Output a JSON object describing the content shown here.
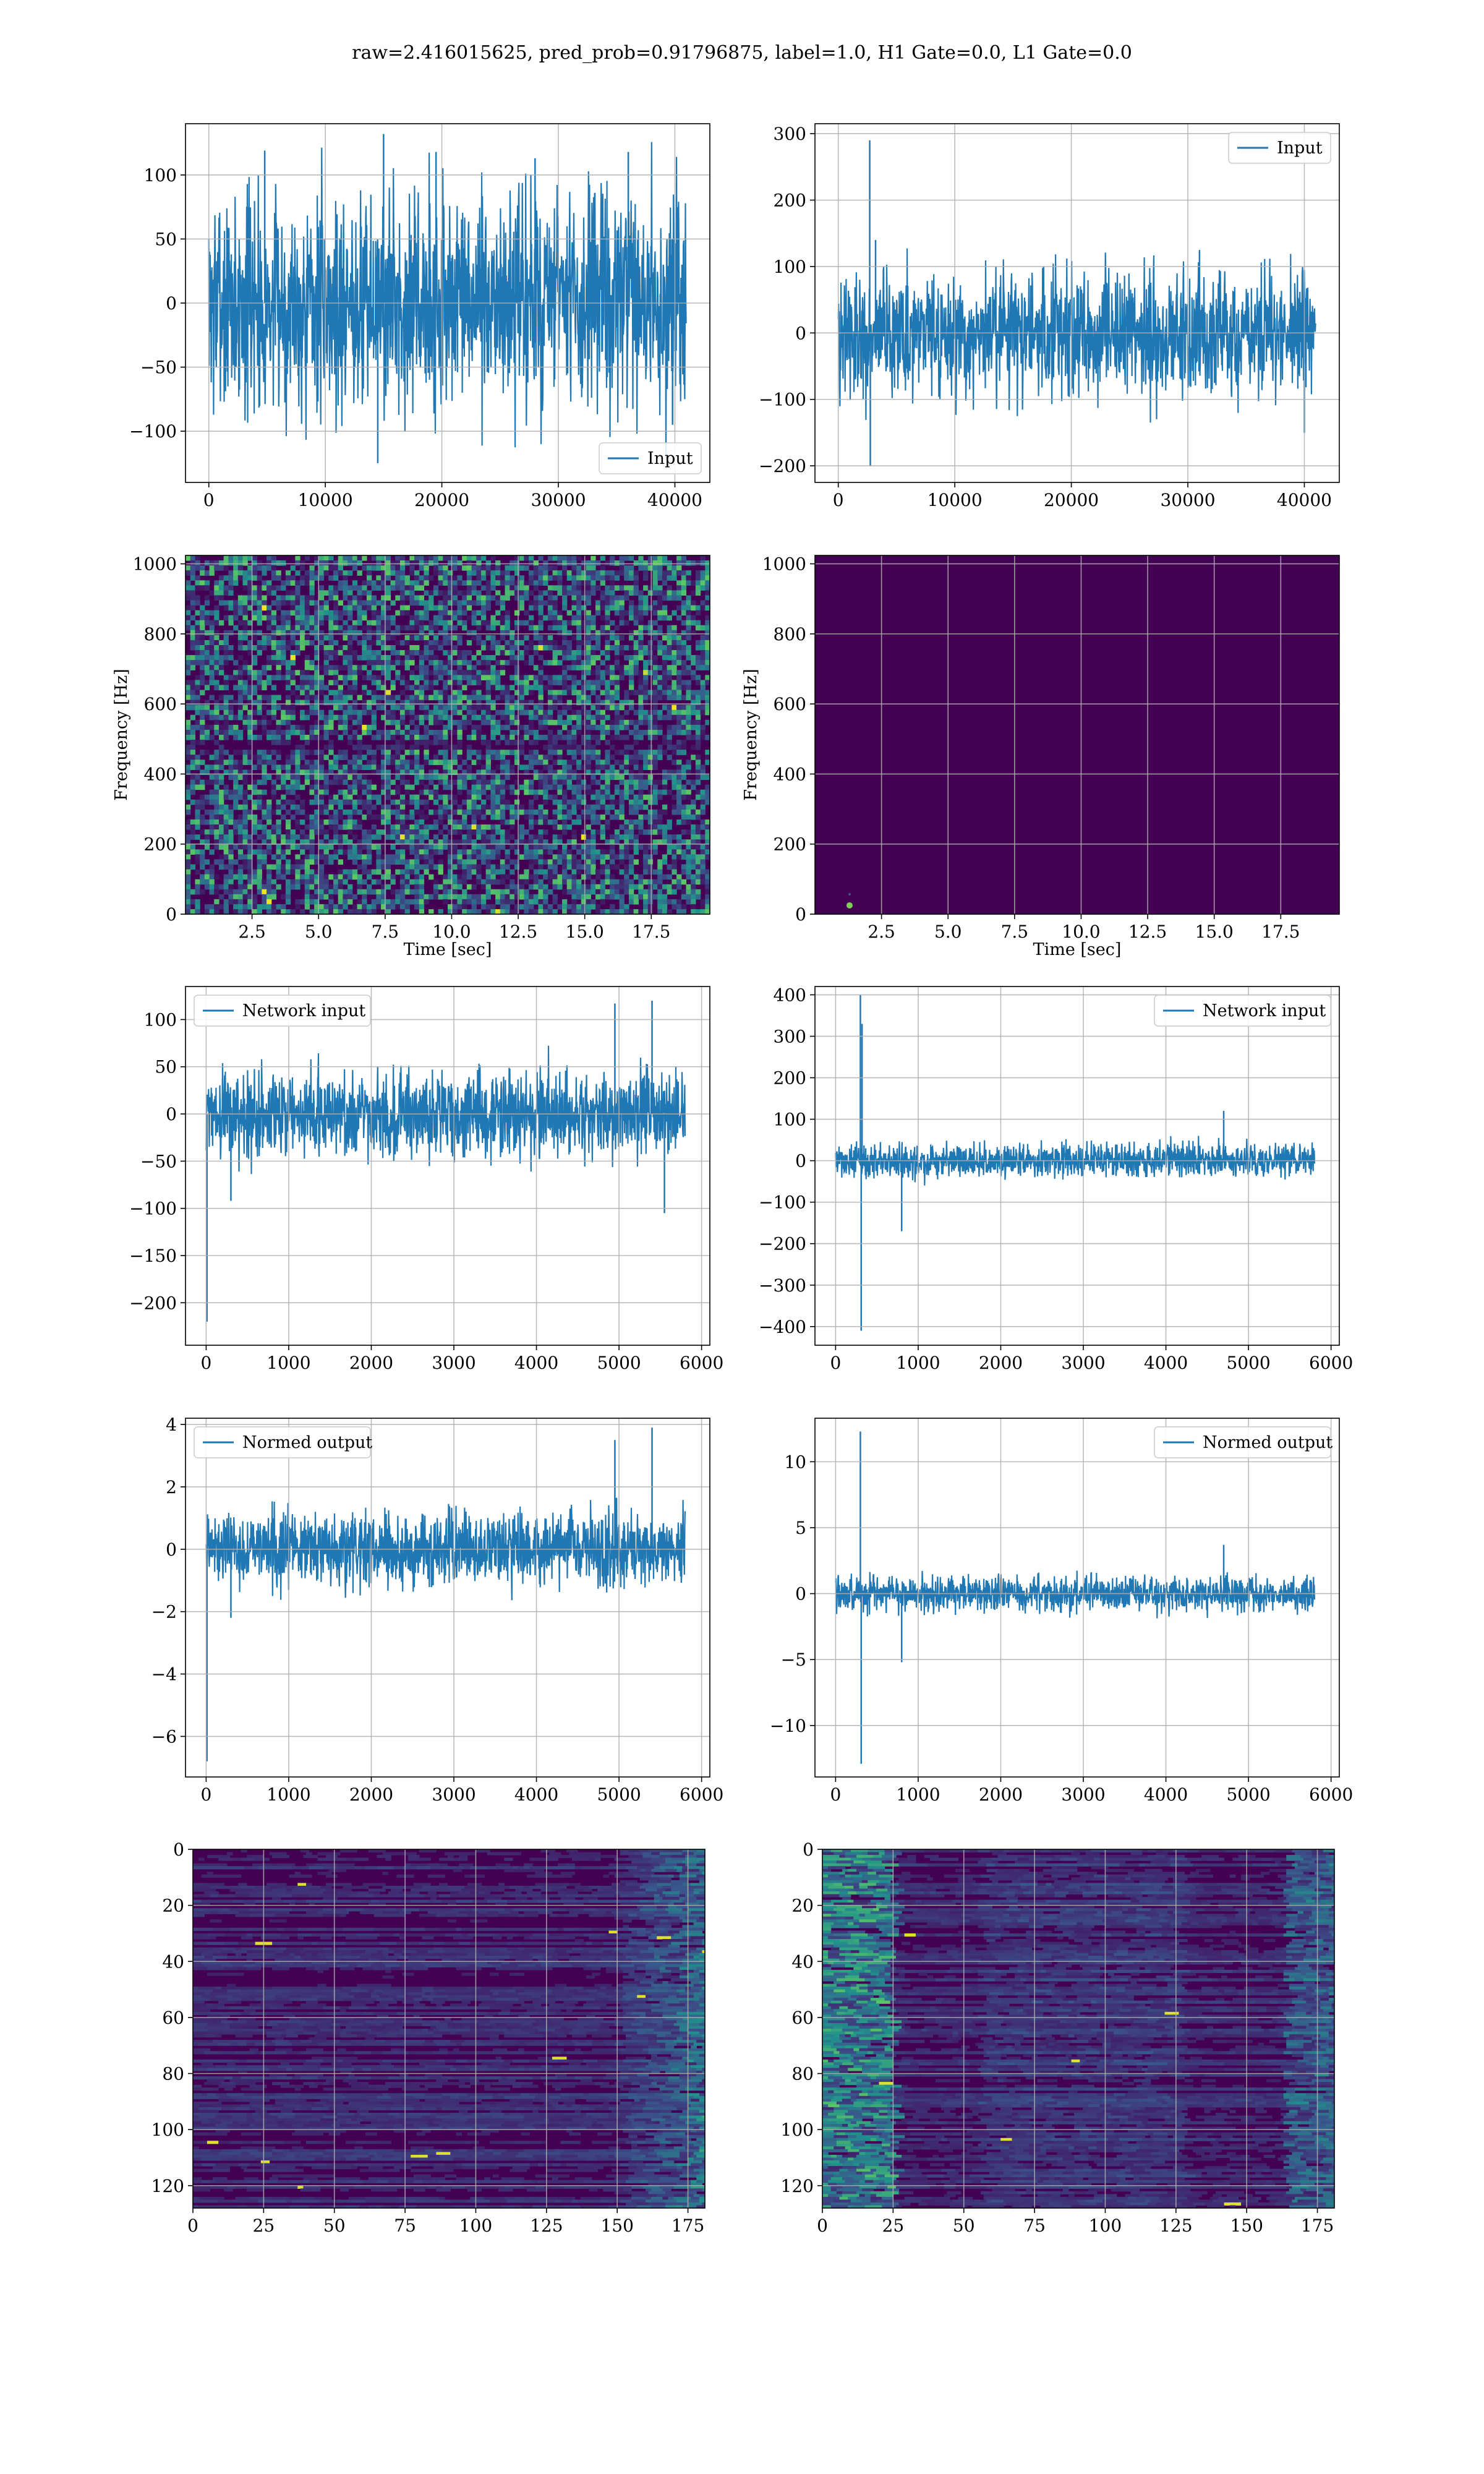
{
  "figure": {
    "title": "raw=2.416015625, pred_prob=0.91796875, label=1.0, H1 Gate=0.0, L1 Gate=0.0"
  },
  "colors": {
    "line": "#1f77b4",
    "grid": "#b0b0b0",
    "viridis_dark": "#440154",
    "viridis_mid": "#3b528b",
    "viridis_teal": "#21918c",
    "viridis_green": "#5ec962",
    "viridis_yellow": "#fde725"
  },
  "chart_data": [
    {
      "id": "h1-input",
      "type": "line",
      "series": [
        {
          "name": "Input",
          "x_range": [
            0,
            40960
          ],
          "amplitude": 60,
          "peaks": [
            [
              4800,
              119
            ],
            [
              15000,
              132
            ],
            [
              19500,
              118
            ],
            [
              28000,
              113
            ],
            [
              36000,
              118
            ],
            [
              39800,
              -95
            ],
            [
              14500,
              -125
            ]
          ]
        }
      ],
      "xlim": [
        -2000,
        43000
      ],
      "ylim": [
        -140,
        140
      ],
      "xticks": [
        0,
        10000,
        20000,
        30000,
        40000
      ],
      "yticks": [
        -100,
        -50,
        0,
        50,
        100
      ],
      "legend": "lower-right",
      "grid": true
    },
    {
      "id": "l1-input",
      "type": "line",
      "series": [
        {
          "name": "Input",
          "x_range": [
            0,
            40960
          ],
          "amplitude": 65,
          "peaks": [
            [
              2700,
              290
            ],
            [
              2750,
              -200
            ],
            [
              3200,
              140
            ],
            [
              31000,
              125
            ],
            [
              40000,
              -150
            ]
          ]
        }
      ],
      "xlim": [
        -2000,
        43000
      ],
      "ylim": [
        -225,
        315
      ],
      "xticks": [
        0,
        10000,
        20000,
        30000,
        40000
      ],
      "yticks": [
        -200,
        -100,
        0,
        100,
        200,
        300
      ],
      "legend": "upper-right",
      "grid": true
    },
    {
      "id": "h1-spectrogram",
      "type": "heatmap",
      "xlabel": "Time [sec]",
      "ylabel": "Frequency [Hz]",
      "xlim": [
        0,
        19.7
      ],
      "ylim": [
        0,
        1024
      ],
      "xticks": [
        2.5,
        5.0,
        7.5,
        10.0,
        12.5,
        15.0,
        17.5
      ],
      "xtick_labels": [
        "2.5",
        "5.0",
        "7.5",
        "10.0",
        "12.5",
        "15.0",
        "17.5"
      ],
      "yticks": [
        0,
        200,
        400,
        600,
        800,
        1000
      ],
      "texture": "noise",
      "grid": true
    },
    {
      "id": "l1-spectrogram",
      "type": "heatmap",
      "xlabel": "Time [sec]",
      "ylabel": "Frequency [Hz]",
      "xlim": [
        0,
        19.7
      ],
      "ylim": [
        0,
        1024
      ],
      "xticks": [
        2.5,
        5.0,
        7.5,
        10.0,
        12.5,
        15.0,
        17.5
      ],
      "xtick_labels": [
        "2.5",
        "5.0",
        "7.5",
        "10.0",
        "12.5",
        "15.0",
        "17.5"
      ],
      "yticks": [
        0,
        200,
        400,
        600,
        800,
        1000
      ],
      "texture": "flat",
      "hotspot": [
        1.3,
        25
      ],
      "grid": true
    },
    {
      "id": "h1-network-input",
      "type": "line",
      "series": [
        {
          "name": "Network input",
          "x_range": [
            0,
            5800
          ],
          "amplitude": 32,
          "peaks": [
            [
              10,
              -220
            ],
            [
              5400,
              120
            ],
            [
              4950,
              117
            ],
            [
              300,
              -92
            ],
            [
              5550,
              -105
            ]
          ]
        }
      ],
      "xlim": [
        -250,
        6100
      ],
      "ylim": [
        -245,
        135
      ],
      "xticks": [
        0,
        1000,
        2000,
        3000,
        4000,
        5000,
        6000
      ],
      "yticks": [
        -200,
        -150,
        -100,
        -50,
        0,
        50,
        100
      ],
      "legend": "upper-left",
      "grid": true
    },
    {
      "id": "l1-network-input",
      "type": "line",
      "series": [
        {
          "name": "Network input",
          "x_range": [
            0,
            5800
          ],
          "amplitude": 28,
          "peaks": [
            [
              300,
              400
            ],
            [
              310,
              -410
            ],
            [
              320,
              330
            ],
            [
              800,
              -170
            ],
            [
              4700,
              120
            ]
          ]
        }
      ],
      "xlim": [
        -250,
        6100
      ],
      "ylim": [
        -445,
        420
      ],
      "xticks": [
        0,
        1000,
        2000,
        3000,
        4000,
        5000,
        6000
      ],
      "yticks": [
        -400,
        -300,
        -200,
        -100,
        0,
        100,
        200,
        300,
        400
      ],
      "legend": "upper-right",
      "grid": true
    },
    {
      "id": "h1-normed-output",
      "type": "line",
      "series": [
        {
          "name": "Normed output",
          "x_range": [
            0,
            5800
          ],
          "amplitude": 0.85,
          "peaks": [
            [
              10,
              -6.8
            ],
            [
              4950,
              3.5
            ],
            [
              5400,
              3.9
            ],
            [
              300,
              -2.2
            ]
          ]
        }
      ],
      "xlim": [
        -250,
        6100
      ],
      "ylim": [
        -7.3,
        4.2
      ],
      "xticks": [
        0,
        1000,
        2000,
        3000,
        4000,
        5000,
        6000
      ],
      "yticks": [
        -6,
        -4,
        -2,
        0,
        2,
        4
      ],
      "legend": "upper-left",
      "grid": true
    },
    {
      "id": "l1-normed-output",
      "type": "line",
      "series": [
        {
          "name": "Normed output",
          "x_range": [
            0,
            5800
          ],
          "amplitude": 0.95,
          "peaks": [
            [
              300,
              12.3
            ],
            [
              310,
              -12.9
            ],
            [
              800,
              -5.2
            ],
            [
              4700,
              3.7
            ]
          ]
        }
      ],
      "xlim": [
        -250,
        6100
      ],
      "ylim": [
        -13.9,
        13.3
      ],
      "xticks": [
        0,
        1000,
        2000,
        3000,
        4000,
        5000,
        6000
      ],
      "yticks": [
        -10,
        -5,
        0,
        5,
        10
      ],
      "legend": "upper-right",
      "grid": true
    },
    {
      "id": "h1-feature-map",
      "type": "heatmap",
      "xlim": [
        0,
        181
      ],
      "ylim": [
        128,
        0
      ],
      "xticks": [
        0,
        25,
        50,
        75,
        100,
        125,
        150,
        175
      ],
      "yticks": [
        0,
        20,
        40,
        60,
        80,
        100,
        120
      ],
      "texture": "rows-right",
      "grid": true
    },
    {
      "id": "l1-feature-map",
      "type": "heatmap",
      "xlim": [
        0,
        181
      ],
      "ylim": [
        128,
        0
      ],
      "xticks": [
        0,
        25,
        50,
        75,
        100,
        125,
        150,
        175
      ],
      "yticks": [
        0,
        20,
        40,
        60,
        80,
        100,
        120
      ],
      "texture": "rows-left",
      "grid": true
    }
  ]
}
